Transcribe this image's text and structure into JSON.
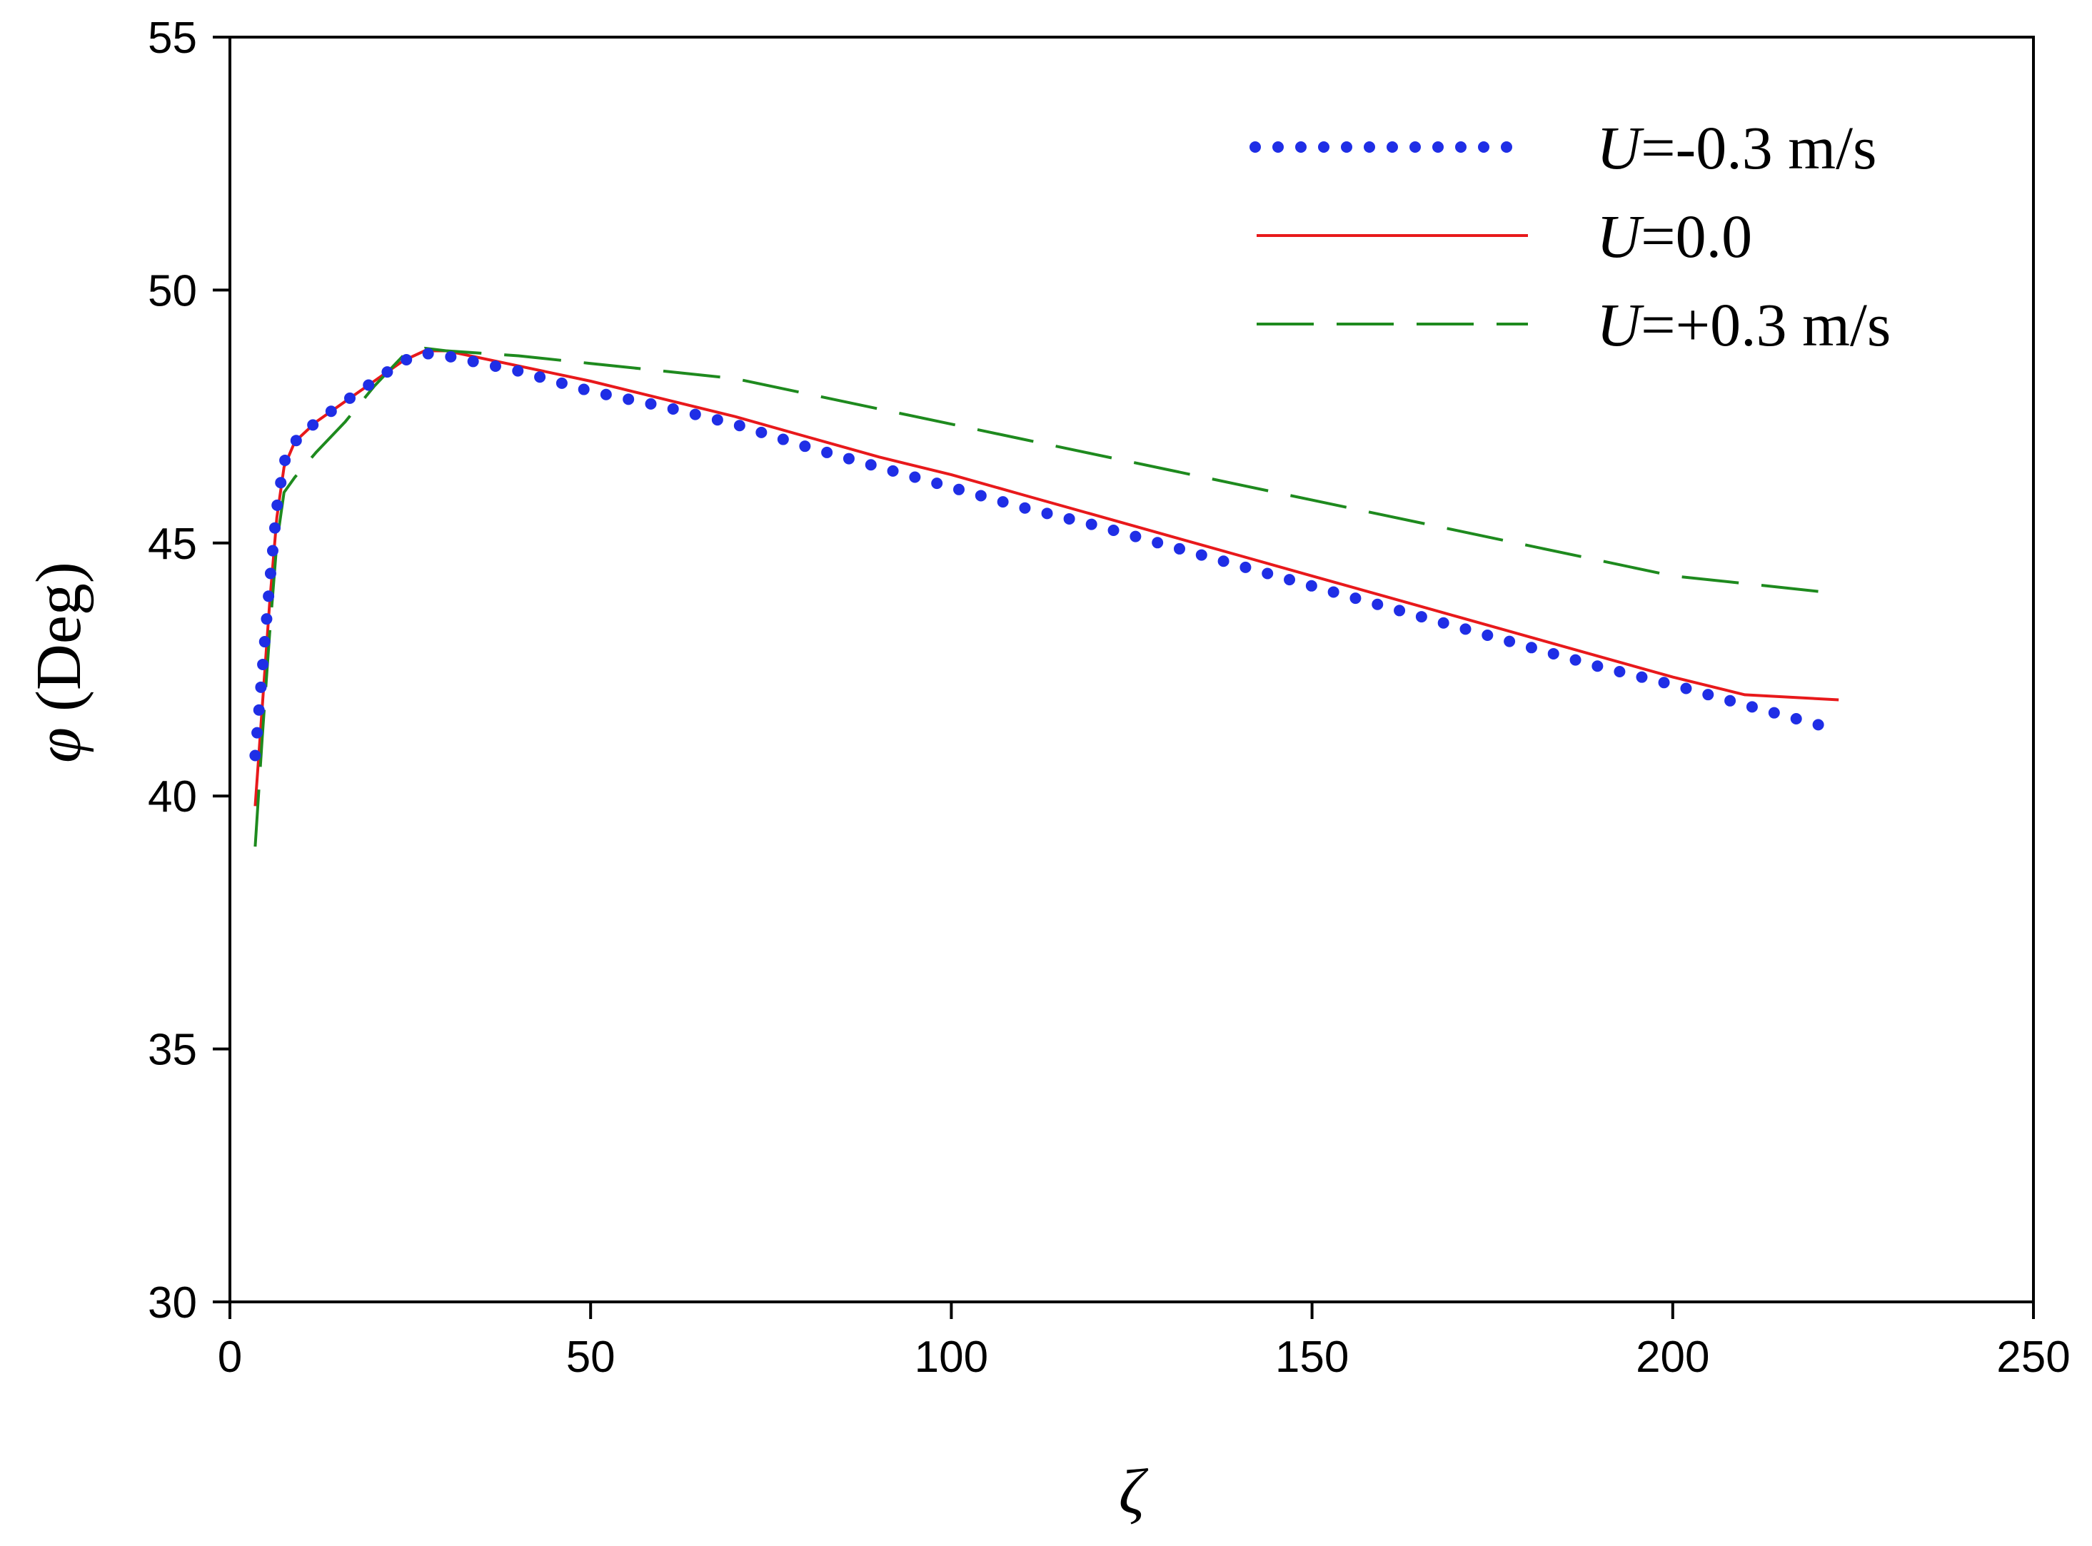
{
  "chart_data": {
    "type": "line",
    "xlabel": "ζ",
    "ylabel_symbol": "φ",
    "ylabel_unit": "(Deg)",
    "xlim": [
      0,
      250
    ],
    "ylim": [
      30,
      55
    ],
    "xticks": [
      0,
      50,
      100,
      150,
      200,
      250
    ],
    "yticks": [
      30,
      35,
      40,
      45,
      50,
      55
    ],
    "grid": false,
    "legend_position": "top-right",
    "series": [
      {
        "name_var": "U",
        "name_rest": "=-0.3 m/s",
        "color": "#1f2ee6",
        "style": "dotted",
        "x": [
          3.5,
          4.5,
          5.5,
          6.5,
          7.5,
          9,
          12,
          16,
          20,
          24,
          27,
          30,
          40,
          50,
          60,
          70,
          80,
          90,
          100,
          110,
          120,
          130,
          140,
          150,
          160,
          170,
          180,
          190,
          200,
          210,
          223
        ],
        "y": [
          40.8,
          42.5,
          44.2,
          45.7,
          46.6,
          47.0,
          47.4,
          47.8,
          48.2,
          48.6,
          48.75,
          48.7,
          48.4,
          48.0,
          47.7,
          47.35,
          46.9,
          46.5,
          46.1,
          45.7,
          45.35,
          44.95,
          44.55,
          44.15,
          43.75,
          43.35,
          42.95,
          42.55,
          42.2,
          41.8,
          41.3
        ]
      },
      {
        "name_var": "U",
        "name_rest": "=0.0",
        "color": "#e8191b",
        "style": "solid",
        "x": [
          3.5,
          4.5,
          5.5,
          6.5,
          7.5,
          9,
          12,
          16,
          20,
          24,
          27,
          30,
          40,
          50,
          60,
          70,
          80,
          90,
          100,
          110,
          120,
          130,
          140,
          150,
          160,
          170,
          180,
          190,
          200,
          210,
          223
        ],
        "y": [
          39.8,
          41.8,
          43.8,
          45.5,
          46.5,
          47.0,
          47.4,
          47.8,
          48.2,
          48.6,
          48.8,
          48.8,
          48.5,
          48.2,
          47.85,
          47.5,
          47.1,
          46.7,
          46.35,
          45.95,
          45.55,
          45.15,
          44.75,
          44.35,
          43.95,
          43.55,
          43.15,
          42.75,
          42.35,
          42.0,
          41.9
        ]
      },
      {
        "name_var": "U",
        "name_rest": "=+0.3 m/s",
        "color": "#1e8a1e",
        "style": "dashed",
        "x": [
          3.5,
          4.5,
          5.5,
          6.5,
          7.5,
          9,
          12,
          16,
          20,
          24,
          27,
          30,
          40,
          50,
          60,
          70,
          80,
          90,
          100,
          110,
          120,
          130,
          140,
          150,
          160,
          170,
          180,
          190,
          200,
          210,
          223
        ],
        "y": [
          39.0,
          41.2,
          43.2,
          45.0,
          46.0,
          46.3,
          46.8,
          47.4,
          48.1,
          48.7,
          48.85,
          48.8,
          48.7,
          48.55,
          48.4,
          48.25,
          47.95,
          47.65,
          47.35,
          47.05,
          46.75,
          46.45,
          46.15,
          45.85,
          45.55,
          45.25,
          44.95,
          44.65,
          44.35,
          44.2,
          44.0
        ]
      }
    ]
  }
}
